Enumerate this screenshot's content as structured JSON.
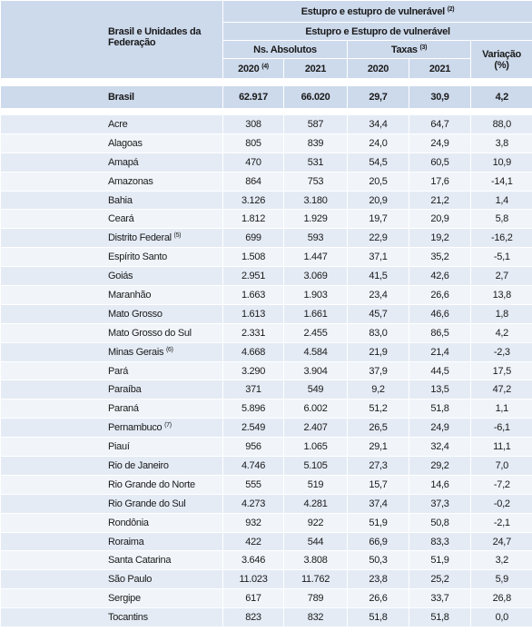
{
  "header": {
    "first_col": "Brasil e Unidades da Federação",
    "group": {
      "text": "Estupro e estupro de vulnerável",
      "note": "(2)"
    },
    "subgroup": "Estupro e Estupro de vulnerável",
    "absolutos": "Ns. Absolutos",
    "taxas": {
      "text": "Taxas",
      "note": "(3)"
    },
    "variacao": [
      "Variação",
      "(%)"
    ],
    "years": [
      {
        "text": "2020",
        "note": "(4)"
      },
      {
        "text": "2021"
      },
      {
        "text": "2020"
      },
      {
        "text": "2021"
      }
    ]
  },
  "total": {
    "name": "Brasil",
    "values": [
      "62.917",
      "66.020",
      "29,7",
      "30,9",
      "4,2"
    ]
  },
  "rows": [
    {
      "name": "Acre",
      "values": [
        "308",
        "587",
        "34,4",
        "64,7",
        "88,0"
      ]
    },
    {
      "name": "Alagoas",
      "values": [
        "805",
        "839",
        "24,0",
        "24,9",
        "3,8"
      ]
    },
    {
      "name": "Amapá",
      "values": [
        "470",
        "531",
        "54,5",
        "60,5",
        "10,9"
      ]
    },
    {
      "name": "Amazonas",
      "values": [
        "864",
        "753",
        "20,5",
        "17,6",
        "-14,1"
      ]
    },
    {
      "name": "Bahia",
      "values": [
        "3.126",
        "3.180",
        "20,9",
        "21,2",
        "1,4"
      ]
    },
    {
      "name": "Ceará",
      "values": [
        "1.812",
        "1.929",
        "19,7",
        "20,9",
        "5,8"
      ]
    },
    {
      "name": "Distrito Federal",
      "note": "(5)",
      "values": [
        "699",
        "593",
        "22,9",
        "19,2",
        "-16,2"
      ]
    },
    {
      "name": "Espírito Santo",
      "values": [
        "1.508",
        "1.447",
        "37,1",
        "35,2",
        "-5,1"
      ]
    },
    {
      "name": "Goiás",
      "values": [
        "2.951",
        "3.069",
        "41,5",
        "42,6",
        "2,7"
      ]
    },
    {
      "name": "Maranhão",
      "values": [
        "1.663",
        "1.903",
        "23,4",
        "26,6",
        "13,8"
      ]
    },
    {
      "name": "Mato Grosso",
      "values": [
        "1.613",
        "1.661",
        "45,7",
        "46,6",
        "1,8"
      ]
    },
    {
      "name": "Mato Grosso do Sul",
      "values": [
        "2.331",
        "2.455",
        "83,0",
        "86,5",
        "4,2"
      ]
    },
    {
      "name": "Minas Gerais",
      "note": "(6)",
      "values": [
        "4.668",
        "4.584",
        "21,9",
        "21,4",
        "-2,3"
      ]
    },
    {
      "name": "Pará",
      "values": [
        "3.290",
        "3.904",
        "37,9",
        "44,5",
        "17,5"
      ]
    },
    {
      "name": "Paraíba",
      "values": [
        "371",
        "549",
        "9,2",
        "13,5",
        "47,2"
      ]
    },
    {
      "name": "Paraná",
      "values": [
        "5.896",
        "6.002",
        "51,2",
        "51,8",
        "1,1"
      ]
    },
    {
      "name": "Pernambuco",
      "note": "(7)",
      "values": [
        "2.549",
        "2.407",
        "26,5",
        "24,9",
        "-6,1"
      ]
    },
    {
      "name": "Piauí",
      "values": [
        "956",
        "1.065",
        "29,1",
        "32,4",
        "11,1"
      ]
    },
    {
      "name": "Rio de Janeiro",
      "values": [
        "4.746",
        "5.105",
        "27,3",
        "29,2",
        "7,0"
      ]
    },
    {
      "name": "Rio Grande do Norte",
      "values": [
        "555",
        "519",
        "15,7",
        "14,6",
        "-7,2"
      ]
    },
    {
      "name": "Rio Grande do Sul",
      "values": [
        "4.273",
        "4.281",
        "37,4",
        "37,3",
        "-0,2"
      ]
    },
    {
      "name": "Rondônia",
      "values": [
        "932",
        "922",
        "51,9",
        "50,8",
        "-2,1"
      ]
    },
    {
      "name": "Roraima",
      "values": [
        "422",
        "544",
        "66,9",
        "83,3",
        "24,7"
      ]
    },
    {
      "name": "Santa Catarina",
      "values": [
        "3.646",
        "3.808",
        "50,3",
        "51,9",
        "3,2"
      ]
    },
    {
      "name": "São Paulo",
      "values": [
        "11.023",
        "11.762",
        "23,8",
        "25,2",
        "5,9"
      ]
    },
    {
      "name": "Sergipe",
      "values": [
        "617",
        "789",
        "26,6",
        "33,7",
        "26,8"
      ]
    },
    {
      "name": "Tocantins",
      "values": [
        "823",
        "832",
        "51,8",
        "51,8",
        "0,0"
      ]
    }
  ]
}
